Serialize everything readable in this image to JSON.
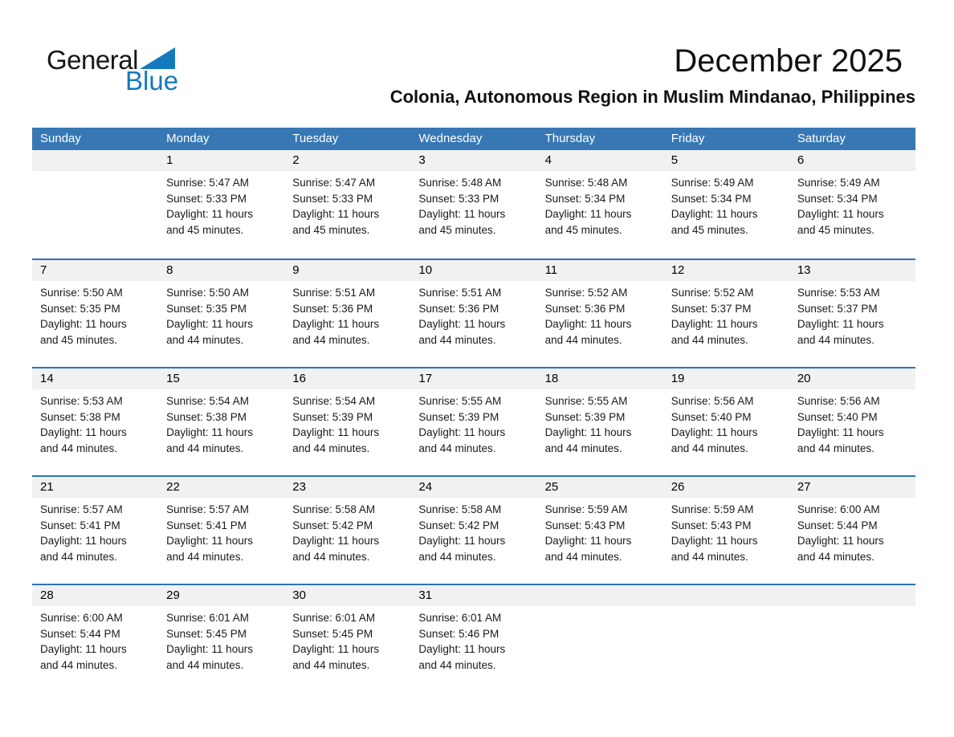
{
  "logo": {
    "general": "General",
    "blue": "Blue"
  },
  "header": {
    "title": "December 2025",
    "subtitle": "Colonia, Autonomous Region in Muslim Mindanao, Philippines"
  },
  "colors": {
    "header_bg": "#3778b4",
    "week_separator": "#2e74b5",
    "day_band_bg": "#f1f1f1",
    "logo_blue": "#1579bd"
  },
  "calendar": {
    "weekdays": [
      "Sunday",
      "Monday",
      "Tuesday",
      "Wednesday",
      "Thursday",
      "Friday",
      "Saturday"
    ],
    "weeks": [
      [
        {
          "day": "",
          "sunrise": "",
          "sunset": "",
          "daylight1": "",
          "daylight2": ""
        },
        {
          "day": "1",
          "sunrise": "Sunrise: 5:47 AM",
          "sunset": "Sunset: 5:33 PM",
          "daylight1": "Daylight: 11 hours",
          "daylight2": "and 45 minutes."
        },
        {
          "day": "2",
          "sunrise": "Sunrise: 5:47 AM",
          "sunset": "Sunset: 5:33 PM",
          "daylight1": "Daylight: 11 hours",
          "daylight2": "and 45 minutes."
        },
        {
          "day": "3",
          "sunrise": "Sunrise: 5:48 AM",
          "sunset": "Sunset: 5:33 PM",
          "daylight1": "Daylight: 11 hours",
          "daylight2": "and 45 minutes."
        },
        {
          "day": "4",
          "sunrise": "Sunrise: 5:48 AM",
          "sunset": "Sunset: 5:34 PM",
          "daylight1": "Daylight: 11 hours",
          "daylight2": "and 45 minutes."
        },
        {
          "day": "5",
          "sunrise": "Sunrise: 5:49 AM",
          "sunset": "Sunset: 5:34 PM",
          "daylight1": "Daylight: 11 hours",
          "daylight2": "and 45 minutes."
        },
        {
          "day": "6",
          "sunrise": "Sunrise: 5:49 AM",
          "sunset": "Sunset: 5:34 PM",
          "daylight1": "Daylight: 11 hours",
          "daylight2": "and 45 minutes."
        }
      ],
      [
        {
          "day": "7",
          "sunrise": "Sunrise: 5:50 AM",
          "sunset": "Sunset: 5:35 PM",
          "daylight1": "Daylight: 11 hours",
          "daylight2": "and 45 minutes."
        },
        {
          "day": "8",
          "sunrise": "Sunrise: 5:50 AM",
          "sunset": "Sunset: 5:35 PM",
          "daylight1": "Daylight: 11 hours",
          "daylight2": "and 44 minutes."
        },
        {
          "day": "9",
          "sunrise": "Sunrise: 5:51 AM",
          "sunset": "Sunset: 5:36 PM",
          "daylight1": "Daylight: 11 hours",
          "daylight2": "and 44 minutes."
        },
        {
          "day": "10",
          "sunrise": "Sunrise: 5:51 AM",
          "sunset": "Sunset: 5:36 PM",
          "daylight1": "Daylight: 11 hours",
          "daylight2": "and 44 minutes."
        },
        {
          "day": "11",
          "sunrise": "Sunrise: 5:52 AM",
          "sunset": "Sunset: 5:36 PM",
          "daylight1": "Daylight: 11 hours",
          "daylight2": "and 44 minutes."
        },
        {
          "day": "12",
          "sunrise": "Sunrise: 5:52 AM",
          "sunset": "Sunset: 5:37 PM",
          "daylight1": "Daylight: 11 hours",
          "daylight2": "and 44 minutes."
        },
        {
          "day": "13",
          "sunrise": "Sunrise: 5:53 AM",
          "sunset": "Sunset: 5:37 PM",
          "daylight1": "Daylight: 11 hours",
          "daylight2": "and 44 minutes."
        }
      ],
      [
        {
          "day": "14",
          "sunrise": "Sunrise: 5:53 AM",
          "sunset": "Sunset: 5:38 PM",
          "daylight1": "Daylight: 11 hours",
          "daylight2": "and 44 minutes."
        },
        {
          "day": "15",
          "sunrise": "Sunrise: 5:54 AM",
          "sunset": "Sunset: 5:38 PM",
          "daylight1": "Daylight: 11 hours",
          "daylight2": "and 44 minutes."
        },
        {
          "day": "16",
          "sunrise": "Sunrise: 5:54 AM",
          "sunset": "Sunset: 5:39 PM",
          "daylight1": "Daylight: 11 hours",
          "daylight2": "and 44 minutes."
        },
        {
          "day": "17",
          "sunrise": "Sunrise: 5:55 AM",
          "sunset": "Sunset: 5:39 PM",
          "daylight1": "Daylight: 11 hours",
          "daylight2": "and 44 minutes."
        },
        {
          "day": "18",
          "sunrise": "Sunrise: 5:55 AM",
          "sunset": "Sunset: 5:39 PM",
          "daylight1": "Daylight: 11 hours",
          "daylight2": "and 44 minutes."
        },
        {
          "day": "19",
          "sunrise": "Sunrise: 5:56 AM",
          "sunset": "Sunset: 5:40 PM",
          "daylight1": "Daylight: 11 hours",
          "daylight2": "and 44 minutes."
        },
        {
          "day": "20",
          "sunrise": "Sunrise: 5:56 AM",
          "sunset": "Sunset: 5:40 PM",
          "daylight1": "Daylight: 11 hours",
          "daylight2": "and 44 minutes."
        }
      ],
      [
        {
          "day": "21",
          "sunrise": "Sunrise: 5:57 AM",
          "sunset": "Sunset: 5:41 PM",
          "daylight1": "Daylight: 11 hours",
          "daylight2": "and 44 minutes."
        },
        {
          "day": "22",
          "sunrise": "Sunrise: 5:57 AM",
          "sunset": "Sunset: 5:41 PM",
          "daylight1": "Daylight: 11 hours",
          "daylight2": "and 44 minutes."
        },
        {
          "day": "23",
          "sunrise": "Sunrise: 5:58 AM",
          "sunset": "Sunset: 5:42 PM",
          "daylight1": "Daylight: 11 hours",
          "daylight2": "and 44 minutes."
        },
        {
          "day": "24",
          "sunrise": "Sunrise: 5:58 AM",
          "sunset": "Sunset: 5:42 PM",
          "daylight1": "Daylight: 11 hours",
          "daylight2": "and 44 minutes."
        },
        {
          "day": "25",
          "sunrise": "Sunrise: 5:59 AM",
          "sunset": "Sunset: 5:43 PM",
          "daylight1": "Daylight: 11 hours",
          "daylight2": "and 44 minutes."
        },
        {
          "day": "26",
          "sunrise": "Sunrise: 5:59 AM",
          "sunset": "Sunset: 5:43 PM",
          "daylight1": "Daylight: 11 hours",
          "daylight2": "and 44 minutes."
        },
        {
          "day": "27",
          "sunrise": "Sunrise: 6:00 AM",
          "sunset": "Sunset: 5:44 PM",
          "daylight1": "Daylight: 11 hours",
          "daylight2": "and 44 minutes."
        }
      ],
      [
        {
          "day": "28",
          "sunrise": "Sunrise: 6:00 AM",
          "sunset": "Sunset: 5:44 PM",
          "daylight1": "Daylight: 11 hours",
          "daylight2": "and 44 minutes."
        },
        {
          "day": "29",
          "sunrise": "Sunrise: 6:01 AM",
          "sunset": "Sunset: 5:45 PM",
          "daylight1": "Daylight: 11 hours",
          "daylight2": "and 44 minutes."
        },
        {
          "day": "30",
          "sunrise": "Sunrise: 6:01 AM",
          "sunset": "Sunset: 5:45 PM",
          "daylight1": "Daylight: 11 hours",
          "daylight2": "and 44 minutes."
        },
        {
          "day": "31",
          "sunrise": "Sunrise: 6:01 AM",
          "sunset": "Sunset: 5:46 PM",
          "daylight1": "Daylight: 11 hours",
          "daylight2": "and 44 minutes."
        },
        {
          "day": "",
          "sunrise": "",
          "sunset": "",
          "daylight1": "",
          "daylight2": ""
        },
        {
          "day": "",
          "sunrise": "",
          "sunset": "",
          "daylight1": "",
          "daylight2": ""
        },
        {
          "day": "",
          "sunrise": "",
          "sunset": "",
          "daylight1": "",
          "daylight2": ""
        }
      ]
    ]
  }
}
